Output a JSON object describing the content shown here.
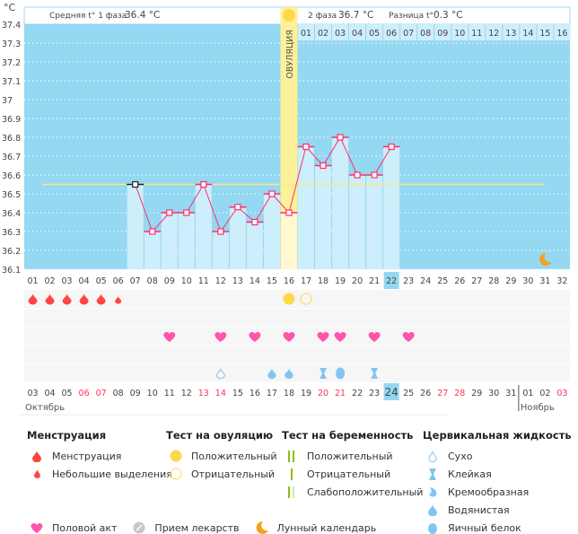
{
  "header": {
    "unit": "°C",
    "phase1_label": "Средняя t° 1 фаза",
    "phase1_value": "36.4 °C",
    "phase2_label": "2 фаза",
    "phase2_value": "36.7 °C",
    "diff_label": "Разница t°",
    "diff_value": "0.3 °C",
    "ovulation_label": "ОВУЛЯЦИЯ"
  },
  "chart_data": {
    "type": "line",
    "ylim": [
      36.1,
      37.4
    ],
    "yticks": [
      "37.4",
      "37.3",
      "37.2",
      "37.1",
      "37",
      "36.9",
      "36.8",
      "36.7",
      "36.6",
      "36.5",
      "36.4",
      "36.3",
      "36.2",
      "36.1"
    ],
    "cycle_days": [
      "01",
      "02",
      "03",
      "04",
      "05",
      "06",
      "07",
      "08",
      "09",
      "10",
      "11",
      "12",
      "13",
      "14",
      "15",
      "16",
      "17",
      "18",
      "19",
      "20",
      "21",
      "22",
      "23",
      "24",
      "25",
      "26",
      "27",
      "28",
      "29",
      "30",
      "31",
      "32"
    ],
    "phase2_days": [
      "01",
      "02",
      "03",
      "04",
      "05",
      "06",
      "07",
      "08",
      "09",
      "10",
      "11",
      "12",
      "13",
      "14",
      "15",
      "16"
    ],
    "ovulation_day": 16,
    "current_day": 22,
    "coverline": 36.55,
    "series": [
      {
        "name": "temperature",
        "x": [
          7,
          8,
          9,
          10,
          11,
          12,
          13,
          14,
          15,
          16,
          17,
          18,
          19,
          20,
          21,
          22
        ],
        "values": [
          36.55,
          36.3,
          36.4,
          36.4,
          36.55,
          36.3,
          36.43,
          36.35,
          36.5,
          36.4,
          36.75,
          36.65,
          36.8,
          36.6,
          36.6,
          36.75
        ]
      }
    ],
    "moon_day": 31
  },
  "markers": {
    "menstruation": [
      1,
      2,
      3,
      4,
      5
    ],
    "spotting": [
      6
    ],
    "ovulation_positive": [
      16
    ],
    "ovulation_negative": [
      17
    ],
    "intercourse": [
      9,
      12,
      14,
      16,
      18,
      19,
      21,
      23
    ],
    "fluid": [
      {
        "day": 12,
        "type": "dry"
      },
      {
        "day": 15,
        "type": "watery"
      },
      {
        "day": 16,
        "type": "watery"
      },
      {
        "day": 18,
        "type": "sticky"
      },
      {
        "day": 19,
        "type": "eggwhite"
      },
      {
        "day": 21,
        "type": "sticky"
      }
    ]
  },
  "dates": [
    "03",
    "04",
    "05",
    "06",
    "07",
    "08",
    "09",
    "10",
    "11",
    "12",
    "13",
    "14",
    "15",
    "16",
    "17",
    "18",
    "19",
    "20",
    "21",
    "22",
    "23",
    "24",
    "25",
    "26",
    "27",
    "28",
    "29",
    "30",
    "31",
    "01",
    "02",
    "03"
  ],
  "weekend_dates_idx": [
    3,
    4,
    10,
    11,
    17,
    18,
    24,
    25,
    31
  ],
  "today_idx": 21,
  "months": {
    "m1": "Октябрь",
    "m2": "Ноябрь"
  },
  "legend": {
    "menstruation": {
      "title": "Менструация",
      "items": [
        "Менструация",
        "Небольшие выделения"
      ]
    },
    "ovulation_test": {
      "title": "Тест на овуляцию",
      "items": [
        "Положительный",
        "Отрицательный"
      ]
    },
    "pregnancy_test": {
      "title": "Тест на беременность",
      "items": [
        "Положительный",
        "Отрицательный",
        "Слабоположительный"
      ]
    },
    "cervical": {
      "title": "Цервикальная жидкость",
      "items": [
        "Сухо",
        "Клейкая",
        "Кремообразная",
        "Водянистая",
        "Яичный белок"
      ]
    },
    "bottom": [
      "Половой акт",
      "Прием лекарств",
      "Лунный календарь"
    ]
  },
  "colors": {
    "sky": "#94d8f2",
    "bar": "#cdeefb",
    "ovul": "#fdf09a",
    "line": "#ff2f6d",
    "cover": "#ffe680",
    "red": "#ff4444",
    "heart": "#ff55aa",
    "fluid": "#7fc6f0",
    "weekend": "#ff3355"
  }
}
